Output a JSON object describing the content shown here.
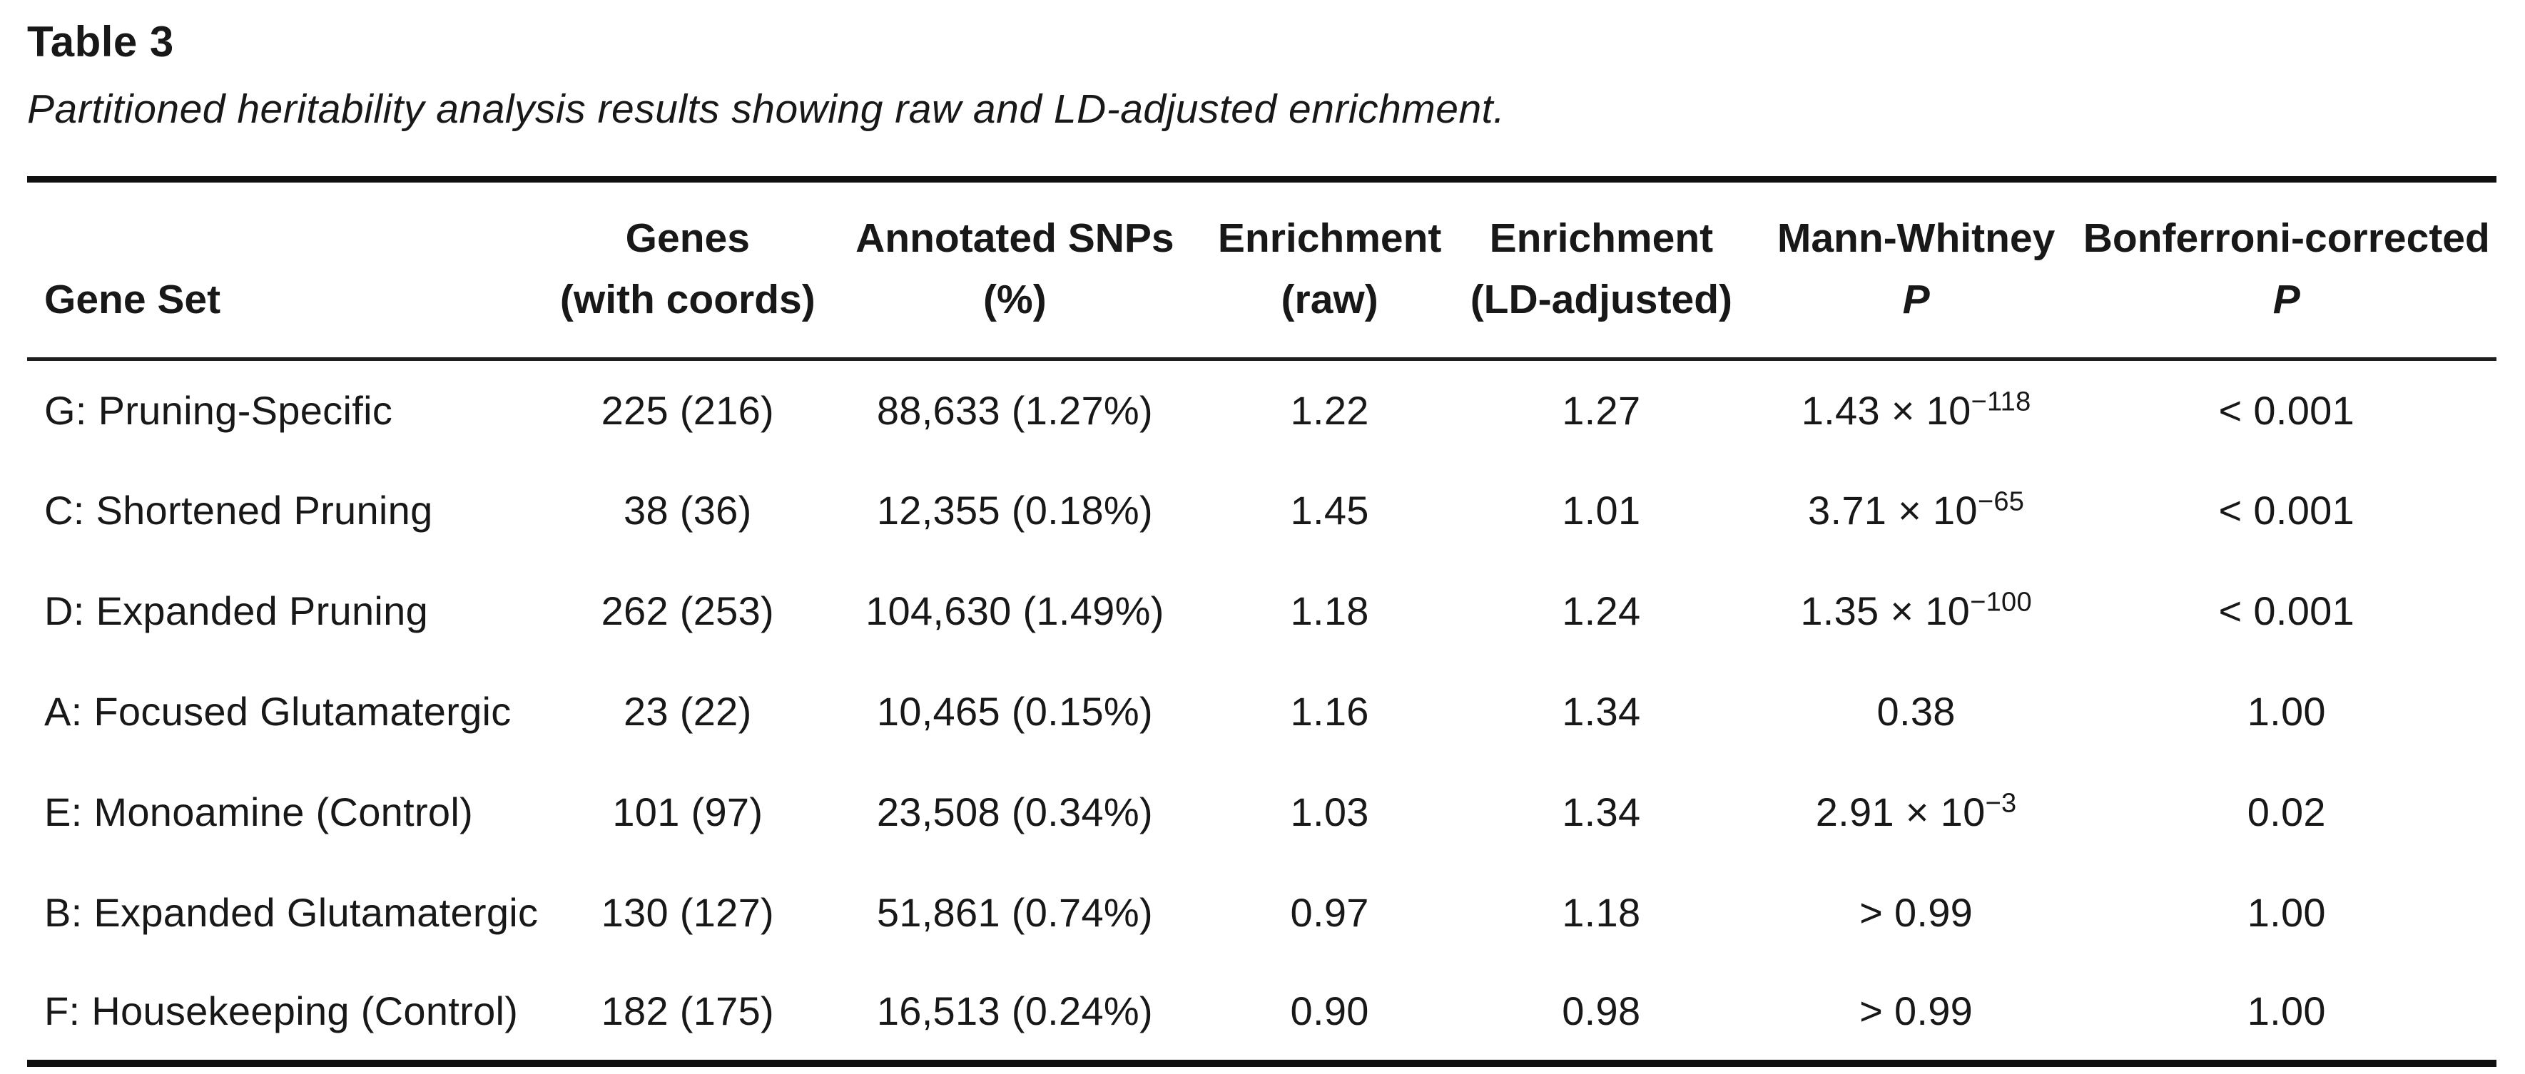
{
  "title": "Table 3",
  "caption": "Partitioned heritability analysis results showing raw and LD-adjusted enrichment.",
  "table": {
    "columns": [
      {
        "line1": "",
        "line2": "Gene Set"
      },
      {
        "line1": "Genes",
        "line2": "(with coords)"
      },
      {
        "line1": "Annotated SNPs",
        "line2": "(%)"
      },
      {
        "line1": "Enrichment",
        "line2": "(raw)"
      },
      {
        "line1": "Enrichment",
        "line2": "(LD-adjusted)"
      },
      {
        "line1": "Mann-Whitney",
        "line2": "P"
      },
      {
        "line1": "Bonferroni-corrected",
        "line2": "P"
      }
    ],
    "rows": [
      {
        "gene_set": "G: Pruning-Specific",
        "genes": "225 (216)",
        "snps": "88,633 (1.27%)",
        "enr_raw": "1.22",
        "enr_ld": "1.27",
        "mw_p": "1.43 × 10^−118",
        "bonf_p": "< 0.001"
      },
      {
        "gene_set": "C: Shortened Pruning",
        "genes": "38 (36)",
        "snps": "12,355 (0.18%)",
        "enr_raw": "1.45",
        "enr_ld": "1.01",
        "mw_p": "3.71 × 10^−65",
        "bonf_p": "< 0.001"
      },
      {
        "gene_set": "D: Expanded Pruning",
        "genes": "262 (253)",
        "snps": "104,630 (1.49%)",
        "enr_raw": "1.18",
        "enr_ld": "1.24",
        "mw_p": "1.35 × 10^−100",
        "bonf_p": "< 0.001"
      },
      {
        "gene_set": "A: Focused Glutamatergic",
        "genes": "23 (22)",
        "snps": "10,465 (0.15%)",
        "enr_raw": "1.16",
        "enr_ld": "1.34",
        "mw_p": "0.38",
        "bonf_p": "1.00"
      },
      {
        "gene_set": "E: Monoamine (Control)",
        "genes": "101 (97)",
        "snps": "23,508 (0.34%)",
        "enr_raw": "1.03",
        "enr_ld": "1.34",
        "mw_p": "2.91 × 10^−3",
        "bonf_p": "0.02"
      },
      {
        "gene_set": "B: Expanded Glutamatergic",
        "genes": "130 (127)",
        "snps": "51,861 (0.74%)",
        "enr_raw": "0.97",
        "enr_ld": "1.18",
        "mw_p": "> 0.99",
        "bonf_p": "1.00"
      },
      {
        "gene_set": "F: Housekeeping (Control)",
        "genes": "182 (175)",
        "snps": "16,513 (0.24%)",
        "enr_raw": "0.90",
        "enr_ld": "0.98",
        "mw_p": "> 0.99",
        "bonf_p": "1.00"
      }
    ],
    "text_color": "#181818",
    "rule_color": "#101010"
  }
}
